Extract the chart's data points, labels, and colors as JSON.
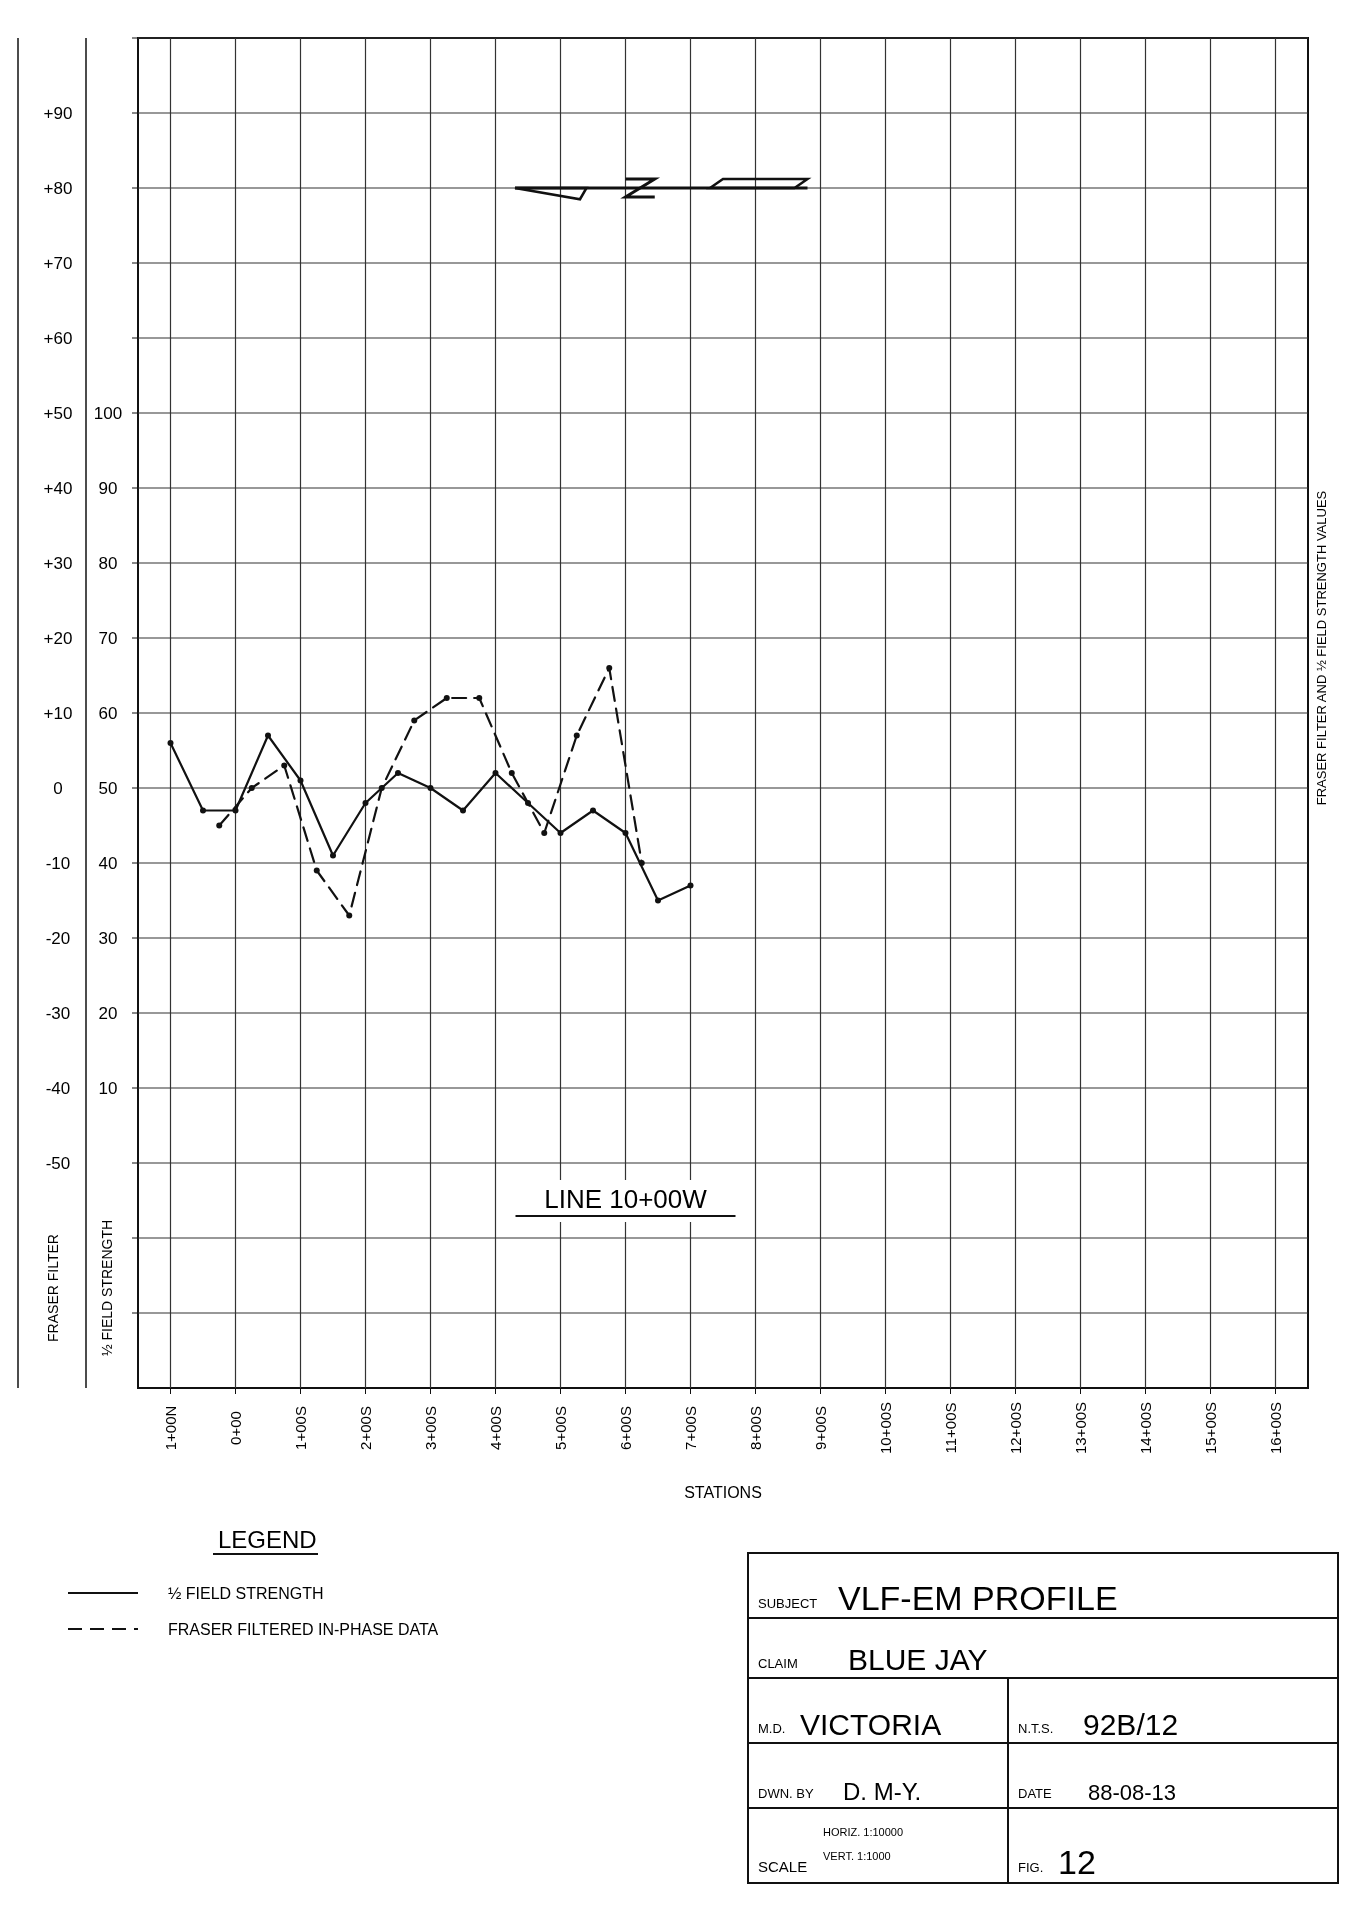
{
  "chart_data": {
    "type": "line",
    "title": "LINE 10+00W",
    "xlabel": "STATIONS",
    "ylabel": "FRASER FILTER",
    "y2label": "½ FIELD STRENGTH",
    "legend_title": "LEGEND",
    "legend": "bottom left",
    "grid": true,
    "marker": "circle",
    "categories": [
      "1+00N",
      null,
      null,
      null,
      "0+00",
      null,
      null,
      null,
      "1+00S",
      null,
      null,
      null,
      "2+00S",
      null,
      null,
      null,
      "3+00S",
      null,
      null,
      null,
      "4+00S",
      null,
      null,
      null,
      "5+00S",
      null,
      null,
      null,
      "6+00S",
      null,
      null,
      null,
      "7+00S",
      null,
      null,
      null,
      "8+00S",
      null,
      null,
      null,
      "9+00S",
      null,
      null,
      null,
      "10+00S",
      null,
      null,
      null,
      "11+00S",
      null,
      null,
      null,
      "12+00S",
      null,
      null,
      null,
      "13+00S",
      null,
      null,
      null,
      "14+00S",
      null,
      null,
      null,
      "15+00S",
      null,
      null,
      null,
      "16+00S"
    ],
    "ylim": [
      -80,
      100
    ],
    "yticks": [
      {
        "value": 100,
        "label": null
      },
      {
        "value": 90,
        "label": "+90"
      },
      {
        "value": 80,
        "label": "+80"
      },
      {
        "value": 70,
        "label": "+70"
      },
      {
        "value": 60,
        "label": "+60"
      },
      {
        "value": 50,
        "label": "+50"
      },
      {
        "value": 40,
        "label": "+40"
      },
      {
        "value": 30,
        "label": "+30"
      },
      {
        "value": 20,
        "label": "+20"
      },
      {
        "value": 10,
        "label": "+10"
      },
      0,
      -10,
      -20,
      -30,
      -40,
      -50,
      {
        "value": -60,
        "label": null
      },
      {
        "value": -70,
        "label": null
      }
    ],
    "y2lim": [
      -30,
      150
    ],
    "y2ticks": [
      100,
      90,
      80,
      70,
      60,
      50,
      40,
      30,
      20,
      10
    ],
    "series": [
      {
        "name": "½ FIELD STRENGTH",
        "color": "#111111",
        "axis": "y2",
        "line_style": "solid",
        "values": [
          56,
          null,
          47,
          null,
          47,
          null,
          57,
          null,
          51,
          null,
          41,
          null,
          48,
          null,
          52,
          null,
          50,
          null,
          47,
          null,
          52,
          null,
          48,
          null,
          44,
          null,
          47,
          null,
          44,
          null,
          35,
          null,
          37,
          null,
          null,
          null,
          null,
          null,
          null,
          null,
          null,
          null,
          null,
          null,
          null,
          null,
          null,
          null,
          null,
          null,
          null,
          null,
          null,
          null,
          null,
          null,
          null,
          null,
          null,
          null,
          null,
          null,
          null,
          null,
          null,
          null,
          null,
          null,
          null
        ]
      },
      {
        "name": "FRASER FILTERED IN-PHASE DATA",
        "color": "#111111",
        "line_style": "dashed",
        "values": [
          null,
          null,
          null,
          -5,
          null,
          0,
          null,
          3,
          null,
          -11,
          null,
          -17,
          null,
          0,
          null,
          9,
          null,
          12,
          null,
          12,
          null,
          2,
          null,
          -6,
          null,
          7,
          null,
          16,
          null,
          -10,
          null,
          null,
          null,
          null,
          null,
          null,
          null,
          null,
          null,
          null,
          null,
          null,
          null,
          null,
          null,
          null,
          null,
          null,
          null,
          null,
          null,
          null,
          null,
          null,
          null,
          null,
          null,
          null,
          null,
          null,
          null,
          null,
          null,
          null,
          null,
          null,
          null,
          null,
          null
        ]
      }
    ],
    "annotations": [
      "FRASER FILTER AND ½ FIELD STRENGTH VALUES",
      "SUBJECT",
      "VLF-EM PROFILE",
      "CLAIM",
      "BLUE JAY",
      "M.D.",
      "VICTORIA",
      "N.T.S.",
      "92B/12",
      "DWN. BY",
      "D. M-Y.",
      "DATE",
      "88-08-13",
      "SCALE",
      "HORIZ. 1:10000",
      "VERT. 1:1000",
      "FIG.",
      "12"
    ]
  }
}
